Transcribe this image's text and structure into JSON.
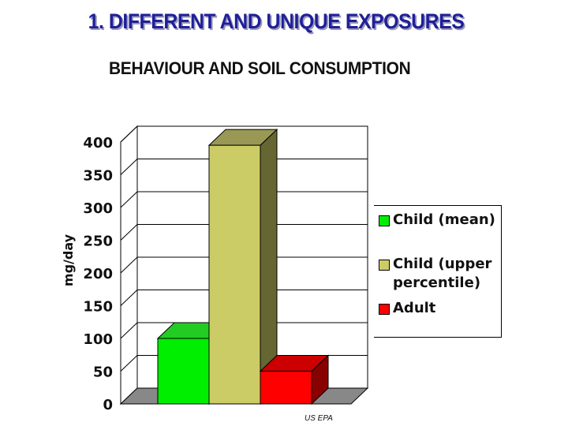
{
  "slide": {
    "title": "1. DIFFERENT AND UNIQUE EXPOSURES",
    "subtitle": "BEHAVIOUR AND SOIL CONSUMPTION",
    "source": "US EPA"
  },
  "chart_data": {
    "type": "bar",
    "title": "",
    "xlabel": "",
    "ylabel": "mg/day",
    "ylim": [
      0,
      400
    ],
    "yticks": [
      0,
      50,
      100,
      150,
      200,
      250,
      300,
      350,
      400
    ],
    "grid": true,
    "legend_position": "right",
    "three_d": true,
    "series": [
      {
        "name": "Child (mean)",
        "values": [
          100
        ],
        "color": "#00ee00",
        "side": "#00a000",
        "top": "#22cc22"
      },
      {
        "name": "Child (upper percentile)",
        "values": [
          395
        ],
        "color": "#cccc66",
        "side": "#666633",
        "top": "#999955"
      },
      {
        "name": "Adult",
        "values": [
          50
        ],
        "color": "#ff0000",
        "side": "#880000",
        "top": "#cc0000"
      }
    ]
  }
}
